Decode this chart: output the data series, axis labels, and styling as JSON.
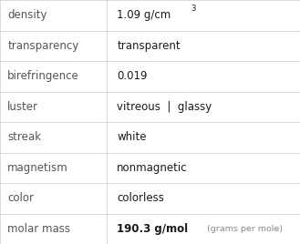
{
  "rows": [
    {
      "label": "density",
      "value": "1.09 g/cm",
      "superscript": "3",
      "extra": ""
    },
    {
      "label": "transparency",
      "value": "transparent",
      "superscript": "",
      "extra": ""
    },
    {
      "label": "birefringence",
      "value": "0.019",
      "superscript": "",
      "extra": ""
    },
    {
      "label": "luster",
      "value": "vitreous  |  glassy",
      "superscript": "",
      "extra": ""
    },
    {
      "label": "streak",
      "value": "white",
      "superscript": "",
      "extra": ""
    },
    {
      "label": "magnetism",
      "value": "nonmagnetic",
      "superscript": "",
      "extra": ""
    },
    {
      "label": "color",
      "value": "colorless",
      "superscript": "",
      "extra": ""
    },
    {
      "label": "molar mass",
      "value": "190.3 g/mol",
      "superscript": "",
      "extra": "(grams per mole)"
    }
  ],
  "bg_color": "#f2f2f2",
  "cell_bg": "#ffffff",
  "border_color": "#cccccc",
  "label_color": "#555555",
  "value_color": "#1a1a1a",
  "extra_color": "#888888",
  "label_font_size": 8.5,
  "value_font_size": 8.5,
  "extra_font_size": 6.8,
  "col_split": 0.355
}
